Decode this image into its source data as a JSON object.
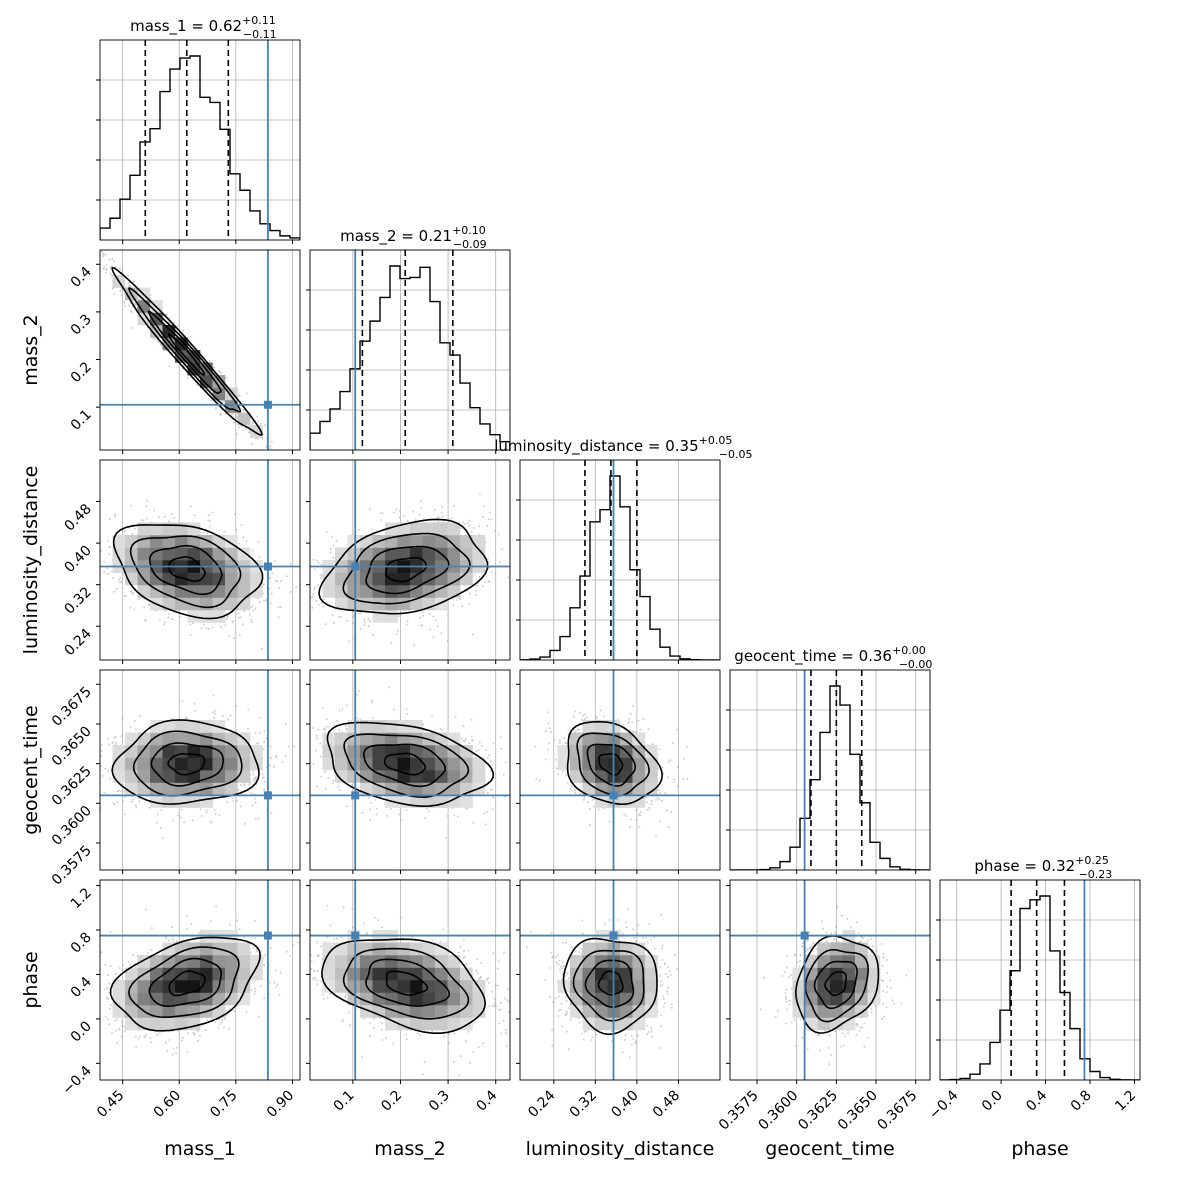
{
  "chart_data": {
    "type": "corner",
    "parameters": [
      "mass_1",
      "mass_2",
      "luminosity_distance",
      "geocent_time",
      "phase"
    ],
    "titles": [
      {
        "text": "mass_1 = 0.62",
        "sup": "+0.11",
        "sub": "−0.11"
      },
      {
        "text": "mass_2 = 0.21",
        "sup": "+0.10",
        "sub": "−0.09"
      },
      {
        "text": "luminosity_distance = 0.35",
        "sup": "+0.05",
        "sub": "−0.05"
      },
      {
        "text": "geocent_time = 0.36",
        "sup": "+0.00",
        "sub": "−0.00"
      },
      {
        "text": "phase = 0.32",
        "sup": "+0.25",
        "sub": "−0.23"
      }
    ],
    "ranges": [
      [
        0.39,
        0.92
      ],
      [
        0.01,
        0.43
      ],
      [
        0.175,
        0.56
      ],
      [
        0.3558,
        0.3684
      ],
      [
        -0.55,
        1.25
      ]
    ],
    "ticks": [
      [
        "0.45",
        "0.60",
        "0.75",
        "0.90"
      ],
      [
        "0.1",
        "0.2",
        "0.3",
        "0.4"
      ],
      [
        "0.24",
        "0.32",
        "0.40",
        "0.48"
      ],
      [
        "0.3575",
        "0.3600",
        "0.3625",
        "0.3650",
        "0.3675"
      ],
      [
        "−0.4",
        "0.0",
        "0.4",
        "0.8",
        "1.2"
      ]
    ],
    "tick_values": [
      [
        0.45,
        0.6,
        0.75,
        0.9
      ],
      [
        0.1,
        0.2,
        0.3,
        0.4
      ],
      [
        0.24,
        0.32,
        0.4,
        0.48
      ],
      [
        0.3575,
        0.36,
        0.3625,
        0.365,
        0.3675
      ],
      [
        -0.4,
        0.0,
        0.4,
        0.8,
        1.2
      ]
    ],
    "y_ticks": [
      null,
      [
        "0.1",
        "0.2",
        "0.3",
        "0.4"
      ],
      [
        "0.24",
        "0.32",
        "0.40",
        "0.48"
      ],
      [
        "0.3575",
        "0.3600",
        "0.3625",
        "0.3650",
        "0.3675"
      ],
      [
        "−0.4",
        "0.0",
        "0.4",
        "0.8",
        "1.2"
      ]
    ],
    "medians": [
      0.62,
      0.21,
      0.35,
      0.3625,
      0.32
    ],
    "lower_err": [
      0.11,
      0.09,
      0.05,
      0.0016,
      0.23
    ],
    "upper_err": [
      0.11,
      0.1,
      0.05,
      0.0016,
      0.25
    ],
    "truths": [
      0.835,
      0.105,
      0.355,
      0.3605,
      0.75
    ],
    "means": [
      0.62,
      0.21,
      0.35,
      0.3625,
      0.32
    ],
    "sds": [
      0.095,
      0.085,
      0.045,
      0.0013,
      0.21
    ],
    "correlations": {
      "1_0": -0.98,
      "2_0": -0.3,
      "2_1": 0.3,
      "3_0": 0.05,
      "3_1": -0.3,
      "3_2": -0.25,
      "4_0": 0.35,
      "4_1": -0.35,
      "4_2": -0.05,
      "4_3": 0.2
    },
    "truth_color": "#4682b4",
    "grid": true
  }
}
